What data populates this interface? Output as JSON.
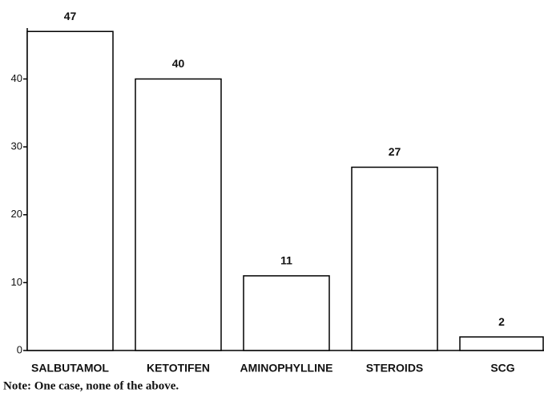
{
  "chart_data": {
    "type": "bar",
    "categories": [
      "SALBUTAMOL",
      "KETOTIFEN",
      "AMINOPHYLLINE",
      "STEROIDS",
      "SCG"
    ],
    "values": [
      47,
      40,
      11,
      27,
      2
    ],
    "color": "#ffffff",
    "ylim": [
      0,
      47.5
    ],
    "yticks": [
      0,
      10,
      20,
      30,
      40
    ],
    "note": "Note:  One case, none of the above."
  }
}
